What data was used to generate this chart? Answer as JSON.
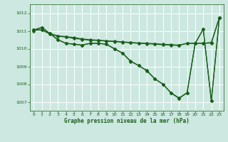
{
  "bg_color": "#cce8e0",
  "grid_color": "#b0d8d0",
  "line_color": "#1a5e1a",
  "marker_color": "#1a5e1a",
  "xlabel": "Graphe pression niveau de la mer (hPa)",
  "ylim": [
    1006.5,
    1012.5
  ],
  "xlim": [
    -0.5,
    23.5
  ],
  "yticks": [
    1007,
    1008,
    1009,
    1010,
    1011,
    1012
  ],
  "xticks": [
    0,
    1,
    2,
    3,
    4,
    5,
    6,
    7,
    8,
    9,
    10,
    11,
    12,
    13,
    14,
    15,
    16,
    17,
    18,
    19,
    20,
    21,
    22,
    23
  ],
  "s1": [
    1011.0,
    1011.2,
    1010.85,
    1010.5,
    1010.3,
    1010.25,
    1010.2,
    1010.3,
    1010.3,
    1010.25,
    1010.0,
    1009.75,
    1009.3,
    1009.05,
    1008.75,
    1008.3,
    1008.0,
    1007.5,
    1007.2,
    1007.5,
    1010.3,
    1011.1,
    1007.05,
    1011.75
  ],
  "s2": [
    1011.05,
    1011.2,
    1010.85,
    1010.5,
    1010.3,
    1010.25,
    1010.2,
    1010.3,
    1010.3,
    1010.25,
    1009.98,
    1009.75,
    1009.28,
    1009.05,
    1008.78,
    1008.3,
    1008.0,
    1007.52,
    1007.22,
    1007.52,
    1010.3,
    1011.1,
    1007.05,
    1011.75
  ],
  "sf1": [
    1011.05,
    1011.05,
    1010.85,
    1010.72,
    1010.68,
    1010.62,
    1010.55,
    1010.5,
    1010.48,
    1010.44,
    1010.42,
    1010.38,
    1010.35,
    1010.32,
    1010.3,
    1010.28,
    1010.25,
    1010.22,
    1010.2,
    1010.3,
    1010.3,
    1010.3,
    1010.35,
    1011.75
  ],
  "sf2": [
    1011.05,
    1011.05,
    1010.83,
    1010.7,
    1010.65,
    1010.58,
    1010.52,
    1010.47,
    1010.46,
    1010.42,
    1010.4,
    1010.36,
    1010.33,
    1010.3,
    1010.28,
    1010.25,
    1010.22,
    1010.2,
    1010.18,
    1010.3,
    1010.3,
    1010.3,
    1010.32,
    1011.75
  ]
}
